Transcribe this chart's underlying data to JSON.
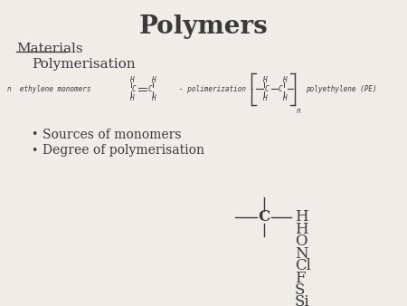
{
  "title": "Polymers",
  "title_fontsize": 20,
  "title_fontweight": "bold",
  "background_color": "#f0ede8",
  "text_color": "#3a3a3a",
  "materials_label": "Materials",
  "polymerisation_label": "Polymerisation",
  "bullet_items": [
    "Sources of monomers",
    "Degree of polymerisation"
  ],
  "reaction_text": "n  ethylene monomers",
  "arrow_text": "- polimerization -",
  "product_text": "polyethylene (PE)",
  "elements": [
    "H",
    "O",
    "N",
    "Cl",
    "F",
    "S",
    "Si"
  ]
}
